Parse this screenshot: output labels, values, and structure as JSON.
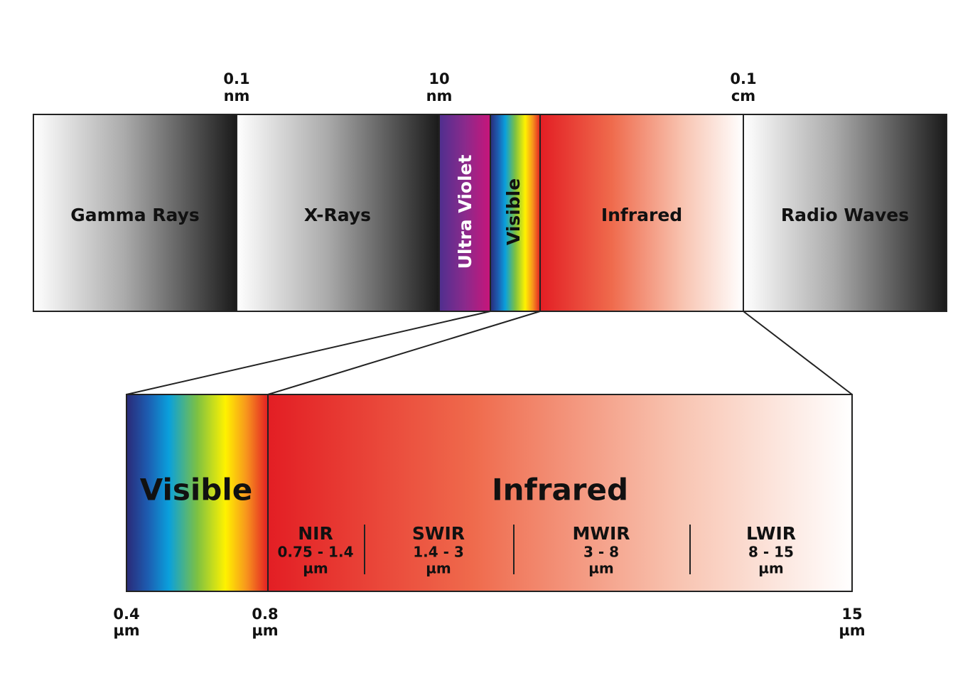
{
  "spectrum": {
    "boundaries": [
      {
        "value": "0.1",
        "unit": "nm"
      },
      {
        "value": "10",
        "unit": "nm"
      },
      {
        "value": "0.1",
        "unit": "cm"
      }
    ],
    "bands": [
      "Gamma Rays",
      "X-Rays",
      "Ultra Violet",
      "Visible",
      "Infrared",
      "Radio Waves"
    ]
  },
  "detail": {
    "bands": [
      "Visible",
      "Infrared"
    ],
    "subbands": [
      {
        "name": "NIR",
        "range": "0.75 - 1.4",
        "unit": "µm"
      },
      {
        "name": "SWIR",
        "range": "1.4 - 3",
        "unit": "µm"
      },
      {
        "name": "MWIR",
        "range": "3 - 8",
        "unit": "µm"
      },
      {
        "name": "LWIR",
        "range": "8 - 15",
        "unit": "µm"
      }
    ],
    "boundaries": [
      {
        "value": "0.4",
        "unit": "µm"
      },
      {
        "value": "0.8",
        "unit": "µm"
      },
      {
        "value": "15",
        "unit": "µm"
      }
    ]
  }
}
